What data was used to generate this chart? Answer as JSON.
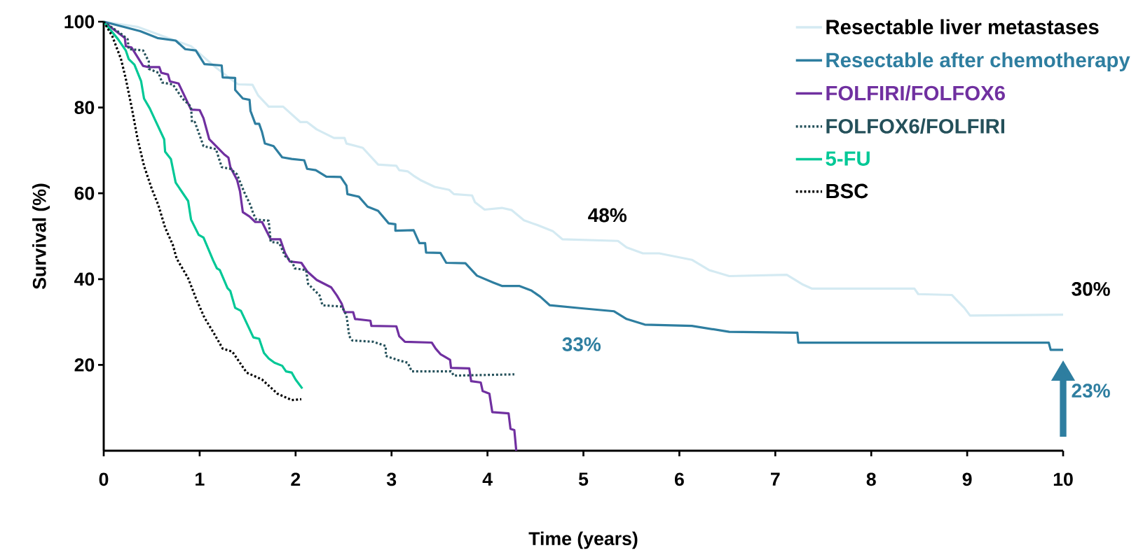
{
  "chart_data": {
    "type": "line",
    "xlabel": "Time (years)",
    "ylabel": "Survival (%)",
    "xlim": [
      0,
      10
    ],
    "ylim": [
      0,
      100
    ],
    "xticks": [
      0,
      1,
      2,
      3,
      4,
      5,
      6,
      7,
      8,
      9,
      10
    ],
    "yticks": [
      20,
      40,
      60,
      80,
      100
    ],
    "legend": "top right",
    "series": [
      {
        "name": "Resectable liver metastases",
        "color": "#d4eaf2",
        "line_style": "solid",
        "x": [
          0,
          0.35,
          0.67,
          0.91,
          1.17,
          1.32,
          1.4,
          1.55,
          1.61,
          1.72,
          1.87,
          2.05,
          2.12,
          2.22,
          2.4,
          2.51,
          2.53,
          2.7,
          2.86,
          3.05,
          3.08,
          3.17,
          3.23,
          3.3,
          3.45,
          3.6,
          3.65,
          3.84,
          3.87,
          3.97,
          4.15,
          4.25,
          4.38,
          4.52,
          4.68,
          4.78,
          5.36,
          5.45,
          5.62,
          5.79,
          6.13,
          6.31,
          6.52,
          7.12,
          7.29,
          7.38,
          8.45,
          8.49,
          8.84,
          8.9,
          8.97,
          9.03,
          10.0
        ],
        "values": [
          100,
          98.8,
          96.2,
          94.3,
          89.3,
          86.7,
          85.4,
          85.3,
          82.8,
          80.2,
          80.2,
          76.6,
          76.6,
          74.9,
          72.9,
          72.9,
          71.6,
          70.6,
          66.7,
          66.4,
          65.4,
          65.1,
          64.1,
          63.1,
          61.5,
          60.8,
          59.8,
          59.5,
          57.9,
          56.2,
          56.6,
          56.1,
          53.7,
          52.6,
          51.2,
          49.3,
          48.9,
          47.4,
          46.0,
          46.0,
          44.5,
          42.1,
          40.7,
          41.0,
          38.7,
          37.8,
          37.8,
          36.5,
          36.3,
          34.9,
          33.3,
          31.5,
          31.7
        ]
      },
      {
        "name": "Resectable after chemotherapy",
        "color": "#2e7ea0",
        "line_style": "solid",
        "x": [
          0,
          0.38,
          0.56,
          0.75,
          0.85,
          0.96,
          1.05,
          1.23,
          1.24,
          1.37,
          1.37,
          1.45,
          1.52,
          1.53,
          1.58,
          1.62,
          1.65,
          1.68,
          1.77,
          1.86,
          1.96,
          2.09,
          2.12,
          2.21,
          2.32,
          2.47,
          2.53,
          2.54,
          2.66,
          2.75,
          2.86,
          2.97,
          3.04,
          3.04,
          3.23,
          3.29,
          3.35,
          3.36,
          3.51,
          3.57,
          3.77,
          3.89,
          4.06,
          4.15,
          4.33,
          4.46,
          4.55,
          4.65,
          4.98,
          5.32,
          5.45,
          5.64,
          6.13,
          6.52,
          7.23,
          7.24,
          9.85,
          9.87,
          10.0
        ],
        "values": [
          100,
          97.8,
          96.2,
          95.6,
          93.6,
          93.3,
          90.1,
          89.8,
          87.0,
          86.9,
          84.1,
          82.1,
          81.8,
          79.2,
          76.2,
          76.2,
          74.3,
          71.6,
          71.0,
          68.4,
          68.0,
          67.7,
          65.7,
          65.4,
          63.9,
          63.8,
          61.8,
          59.8,
          59.2,
          56.9,
          55.9,
          53.0,
          52.8,
          51.3,
          51.4,
          48.4,
          48.4,
          46.2,
          46.1,
          43.8,
          43.7,
          40.8,
          39.2,
          38.4,
          38.4,
          37.3,
          35.9,
          33.9,
          33.2,
          32.5,
          30.7,
          29.4,
          29.1,
          27.7,
          27.5,
          25.2,
          25.2,
          23.5,
          23.5
        ]
      },
      {
        "name": "FOLFIRI/FOLFOX6",
        "color": "#7030a0",
        "line_style": "solid",
        "x": [
          0,
          0.22,
          0.23,
          0.29,
          0.41,
          0.47,
          0.58,
          0.6,
          0.67,
          0.69,
          0.78,
          0.91,
          1.0,
          1.04,
          1.1,
          1.26,
          1.3,
          1.32,
          1.39,
          1.42,
          1.45,
          1.52,
          1.58,
          1.65,
          1.74,
          1.84,
          1.89,
          1.94,
          2.06,
          2.12,
          2.22,
          2.37,
          2.43,
          2.48,
          2.51,
          2.6,
          2.62,
          2.78,
          2.79,
          3.05,
          3.08,
          3.14,
          3.42,
          3.46,
          3.51,
          3.61,
          3.62,
          3.81,
          3.83,
          3.93,
          3.95,
          4.02,
          4.05,
          4.22,
          4.24,
          4.28,
          4.3
        ],
        "values": [
          100,
          96.2,
          94.3,
          94.0,
          89.7,
          89.4,
          89.4,
          88.1,
          87.7,
          86.1,
          85.6,
          79.5,
          79.4,
          77.5,
          72.6,
          69.0,
          68.3,
          66.1,
          63.1,
          60.5,
          55.6,
          54.6,
          53.3,
          53.3,
          49.3,
          49.3,
          46.1,
          44.1,
          43.8,
          41.8,
          39.8,
          38.1,
          36.2,
          34.3,
          32.3,
          32.3,
          30.7,
          30.3,
          29.1,
          29.0,
          26.7,
          25.4,
          25.2,
          23.8,
          22.5,
          21.2,
          19.3,
          19.2,
          16.2,
          15.9,
          13.9,
          13.3,
          9.0,
          8.7,
          5.1,
          4.8,
          0
        ]
      },
      {
        "name": "FOLFOX6/FOLFIRI",
        "color": "#24505a",
        "line_style": "dotted",
        "x": [
          0,
          0.18,
          0.25,
          0.26,
          0.41,
          0.47,
          0.47,
          0.57,
          0.61,
          0.72,
          0.82,
          0.91,
          0.92,
          0.95,
          1.04,
          1.17,
          1.23,
          1.32,
          1.39,
          1.46,
          1.53,
          1.56,
          1.59,
          1.72,
          1.74,
          1.83,
          1.89,
          1.97,
          1.99,
          2.11,
          2.13,
          2.25,
          2.28,
          2.48,
          2.53,
          2.56,
          2.59,
          2.81,
          2.94,
          2.94,
          3.07,
          3.17,
          3.21,
          3.62,
          3.65,
          4.28
        ],
        "values": [
          100,
          97.2,
          95.9,
          93.6,
          93.3,
          90.7,
          89.0,
          88.1,
          85.8,
          85.4,
          82.1,
          80.2,
          76.6,
          76.6,
          71.0,
          70.3,
          66.1,
          65.7,
          64.4,
          60.5,
          57.2,
          55.2,
          53.9,
          53.6,
          48.7,
          48.4,
          45.4,
          43.8,
          42.5,
          42.1,
          38.9,
          36.2,
          33.9,
          33.6,
          31.6,
          26.7,
          25.7,
          25.4,
          24.4,
          22.1,
          21.1,
          20.5,
          18.5,
          18.5,
          17.5,
          17.8
        ]
      },
      {
        "name": "5-FU",
        "color": "#00c896",
        "line_style": "solid",
        "x": [
          0,
          0.15,
          0.23,
          0.26,
          0.32,
          0.39,
          0.42,
          0.48,
          0.54,
          0.63,
          0.64,
          0.7,
          0.75,
          0.88,
          0.91,
          0.99,
          1.04,
          1.14,
          1.18,
          1.21,
          1.29,
          1.32,
          1.37,
          1.43,
          1.56,
          1.62,
          1.67,
          1.72,
          1.78,
          1.86,
          1.9,
          1.96,
          2.0,
          2.07
        ],
        "values": [
          100,
          95.9,
          93.3,
          91.3,
          90.0,
          86.1,
          82.1,
          79.8,
          76.9,
          72.6,
          69.7,
          68.0,
          62.5,
          58.2,
          53.9,
          50.3,
          49.7,
          44.4,
          42.5,
          42.1,
          37.9,
          37.2,
          33.3,
          32.6,
          26.4,
          26.1,
          22.8,
          21.5,
          20.5,
          19.8,
          18.5,
          18.2,
          16.6,
          14.5
        ]
      },
      {
        "name": "BSC",
        "color": "#000000",
        "line_style": "dotted",
        "x": [
          0,
          0.09,
          0.18,
          0.23,
          0.29,
          0.35,
          0.42,
          0.5,
          0.57,
          0.64,
          0.72,
          0.76,
          0.88,
          0.96,
          1.05,
          1.14,
          1.24,
          1.34,
          1.49,
          1.65,
          1.81,
          1.96,
          2.06
        ],
        "values": [
          100,
          96.6,
          91.3,
          86.7,
          80.2,
          73.0,
          66.4,
          61.1,
          57.2,
          52.0,
          48.0,
          44.8,
          40.2,
          35.6,
          31.0,
          27.7,
          23.8,
          23.1,
          18.2,
          16.6,
          13.3,
          11.8,
          12.0
        ]
      }
    ],
    "annotations": [
      "48%",
      "33%",
      "30%",
      "23%"
    ]
  }
}
